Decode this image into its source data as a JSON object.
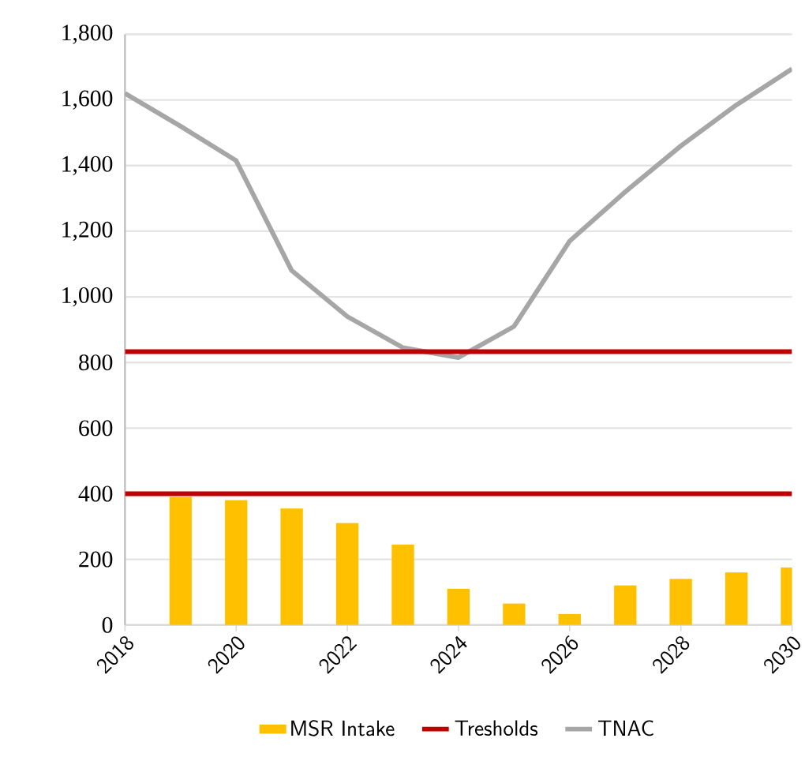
{
  "chart_data": {
    "type": "bar",
    "xlim": [
      2018,
      2030
    ],
    "xticks": [
      2018,
      2020,
      2022,
      2024,
      2026,
      2028,
      2030
    ],
    "ylim": [
      0,
      1800
    ],
    "yticks": [
      0,
      200,
      400,
      600,
      {
        "value": 800,
        "label": "800"
      },
      {
        "value": 1000,
        "label": "1,000"
      },
      {
        "value": 1200,
        "label": "1,200"
      },
      {
        "value": 1400,
        "label": "1,400"
      },
      {
        "value": 1600,
        "label": "1,600"
      },
      {
        "value": 1800,
        "label": "1,800"
      }
    ],
    "series": [
      {
        "name": "MSR Intake",
        "color": "#ffc000",
        "x": [
          2019,
          2020,
          2021,
          2022,
          2023,
          2024,
          2025,
          2026,
          2027,
          2028,
          2029,
          2030
        ],
        "values": [
          390,
          380,
          355,
          310,
          245,
          110,
          65,
          33,
          120,
          140,
          160,
          175
        ]
      },
      {
        "name": "TNAC",
        "type": "line",
        "color": "#a6a6a6",
        "x": [
          2018,
          2019,
          2020,
          2021,
          2022,
          2023,
          2024,
          2025,
          2026,
          2027,
          2028,
          2029,
          2030
        ],
        "values": [
          1620,
          1520,
          1415,
          1080,
          940,
          845,
          815,
          910,
          1170,
          1320,
          1460,
          1585,
          1695
        ]
      }
    ],
    "ref_lines": [
      {
        "axis": "y",
        "value": 833,
        "label": "Tresholds",
        "color": "#c00000"
      },
      {
        "axis": "y",
        "value": 400,
        "color": "#c00000"
      }
    ],
    "grid": "y",
    "legend": "bottom"
  }
}
